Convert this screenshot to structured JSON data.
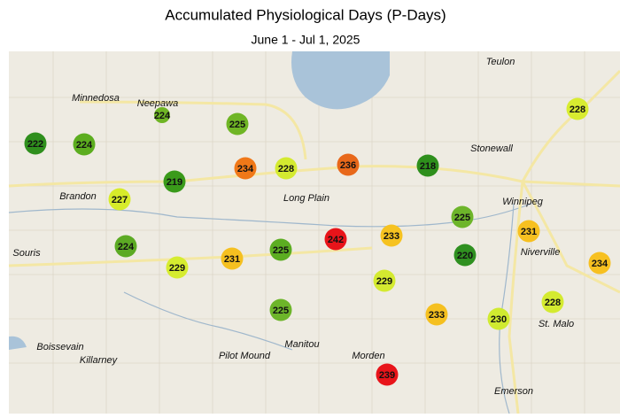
{
  "map": {
    "title": "Accumulated Physiological Days (P-Days)",
    "subtitle": "June 1 - Jul 1, 2025",
    "towns": [
      {
        "name": "Teulon"
      },
      {
        "name": "Minnedosa"
      },
      {
        "name": "Neepawa"
      },
      {
        "name": "Stonewall"
      },
      {
        "name": "Winnipeg"
      },
      {
        "name": "Brandon"
      },
      {
        "name": "Long Plain"
      },
      {
        "name": "Souris"
      },
      {
        "name": "Niverville"
      },
      {
        "name": "St. Malo"
      },
      {
        "name": "Boissevain"
      },
      {
        "name": "Killarney"
      },
      {
        "name": "Pilot Mound"
      },
      {
        "name": "Manitou"
      },
      {
        "name": "Morden"
      },
      {
        "name": "Emerson"
      }
    ],
    "stations": [
      {
        "value": 222,
        "color": "#2f8f1d"
      },
      {
        "value": 224,
        "color": "#5cad1f"
      },
      {
        "value": 224,
        "color": "#6fb525"
      },
      {
        "value": 225,
        "color": "#6fb525"
      },
      {
        "value": 219,
        "color": "#3a9a1a"
      },
      {
        "value": 227,
        "color": "#d7ec2a"
      },
      {
        "value": 234,
        "color": "#f07818"
      },
      {
        "value": 228,
        "color": "#d4ea30"
      },
      {
        "value": 236,
        "color": "#e8681a"
      },
      {
        "value": 218,
        "color": "#2e8f1c"
      },
      {
        "value": 225,
        "color": "#6db52a"
      },
      {
        "value": 242,
        "color": "#e8141a"
      },
      {
        "value": 233,
        "color": "#f6c220"
      },
      {
        "value": 231,
        "color": "#f7c020"
      },
      {
        "value": 220,
        "color": "#2f9020"
      },
      {
        "value": 234,
        "color": "#f7c020"
      },
      {
        "value": 224,
        "color": "#5caa24"
      },
      {
        "value": 229,
        "color": "#d6ec30"
      },
      {
        "value": 231,
        "color": "#f5c020"
      },
      {
        "value": 225,
        "color": "#5cad22"
      },
      {
        "value": 229,
        "color": "#d4ea30"
      },
      {
        "value": 225,
        "color": "#6db52a"
      },
      {
        "value": 233,
        "color": "#f5c020"
      },
      {
        "value": 230,
        "color": "#d0ea30"
      },
      {
        "value": 228,
        "color": "#d4ea30"
      },
      {
        "value": 239,
        "color": "#e8141a"
      },
      {
        "value": 228,
        "color": "#d8ec30"
      }
    ]
  }
}
